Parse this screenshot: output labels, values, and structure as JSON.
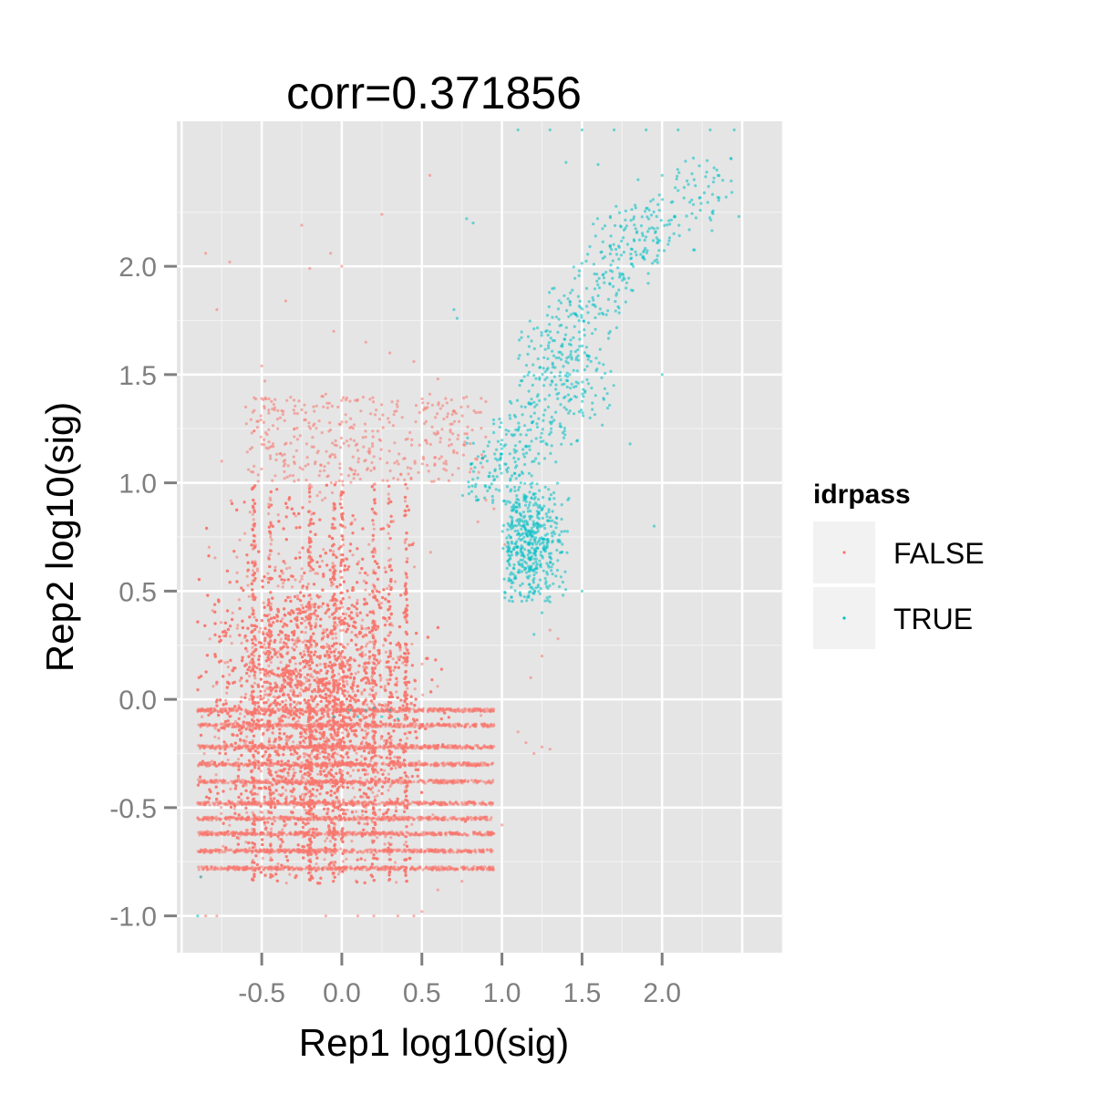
{
  "chart_data": {
    "type": "scatter",
    "title": "corr=0.371856",
    "xlabel": "Rep1 log10(sig)",
    "ylabel": "Rep2 log10(sig)",
    "xlim": [
      -1.03,
      2.75
    ],
    "ylim": [
      -1.17,
      2.67
    ],
    "x_ticks": [
      -0.5,
      0.0,
      0.5,
      1.0,
      1.5,
      2.0
    ],
    "x_tick_labels": [
      "-0.5",
      "0.0",
      "0.5",
      "1.0",
      "1.5",
      "2.0"
    ],
    "y_ticks": [
      -1.0,
      -0.5,
      0.0,
      0.5,
      1.0,
      1.5,
      2.0
    ],
    "y_tick_labels": [
      "-1.0",
      "-0.5",
      "0.0",
      "0.5",
      "1.0",
      "1.5",
      "2.0"
    ],
    "grid": true,
    "background_color": "#e5e5e5",
    "legend": {
      "title": "idrpass",
      "placement": "right",
      "entries": [
        {
          "label": "FALSE",
          "color": "#f8766d"
        },
        {
          "label": "TRUE",
          "color": "#00bfc4"
        }
      ]
    },
    "series": [
      {
        "name": "FALSE",
        "color": "#f8766d",
        "points": [
          [
            -0.85,
            2.06
          ],
          [
            -0.78,
            1.8
          ],
          [
            -0.7,
            2.02
          ],
          [
            -0.5,
            1.54
          ],
          [
            -0.48,
            1.47
          ],
          [
            -0.25,
            2.19
          ],
          [
            -0.35,
            1.84
          ],
          [
            -0.2,
            1.99
          ],
          [
            -0.07,
            2.06
          ],
          [
            0.0,
            2.0
          ],
          [
            0.25,
            2.24
          ],
          [
            0.55,
            2.42
          ],
          [
            -0.6,
            1.35
          ],
          [
            -0.4,
            1.25
          ],
          [
            -0.05,
            1.7
          ],
          [
            0.15,
            1.65
          ],
          [
            0.3,
            1.6
          ],
          [
            0.45,
            1.56
          ],
          [
            0.6,
            1.48
          ],
          [
            -0.1,
            1.41
          ],
          [
            0.55,
            1.41
          ],
          [
            -0.88,
            -0.82
          ],
          [
            -0.85,
            -1.0
          ],
          [
            -0.78,
            -1.0
          ],
          [
            -0.1,
            -1.0
          ],
          [
            0.1,
            -1.0
          ],
          [
            0.2,
            -1.0
          ],
          [
            0.35,
            -1.0
          ],
          [
            0.45,
            -1.0
          ],
          [
            0.5,
            -0.98
          ],
          [
            0.6,
            -0.88
          ],
          [
            0.75,
            -0.84
          ],
          [
            0.85,
            -0.62
          ],
          [
            0.95,
            -0.62
          ],
          [
            1.0,
            -0.58
          ],
          [
            1.1,
            -0.15
          ],
          [
            1.15,
            -0.2
          ],
          [
            1.2,
            -0.25
          ],
          [
            1.25,
            -0.22
          ],
          [
            1.3,
            -0.23
          ],
          [
            1.18,
            0.1
          ],
          [
            1.25,
            0.2
          ],
          [
            1.3,
            0.32
          ],
          [
            1.35,
            0.28
          ],
          [
            0.85,
            0.82
          ],
          [
            0.9,
            0.92
          ],
          [
            0.95,
            0.88
          ],
          [
            -0.75,
            1.1
          ],
          [
            -0.3,
            1.12
          ],
          [
            0.1,
            1.15
          ],
          [
            0.4,
            1.2
          ],
          [
            0.65,
            1.1
          ],
          [
            0.8,
            1.05
          ]
        ],
        "clusters": [
          {
            "x": [
              -0.9,
              1.0
            ],
            "y": [
              -0.85,
              1.0
            ],
            "approx_count": 9000
          },
          {
            "x": [
              -0.9,
              0.95
            ],
            "y": [
              -0.8,
              -0.05
            ],
            "approx_count": 4000,
            "note": "banded rows near y = -0.05, -0.2, -0.3, -0.4, -0.5, -0.6, -0.7"
          },
          {
            "x": [
              -0.6,
              0.9
            ],
            "y": [
              1.0,
              1.4
            ],
            "approx_count": 400
          }
        ]
      },
      {
        "name": "TRUE",
        "color": "#00bfc4",
        "points": [
          [
            -0.9,
            -1.0
          ],
          [
            -0.88,
            -0.82
          ],
          [
            -0.05,
            -0.08
          ],
          [
            0.05,
            -0.05
          ],
          [
            0.1,
            -0.08
          ],
          [
            0.15,
            -0.05
          ],
          [
            0.2,
            -0.04
          ],
          [
            0.25,
            -0.08
          ],
          [
            0.3,
            -0.05
          ],
          [
            0.35,
            -0.09
          ],
          [
            0.78,
            2.22
          ],
          [
            0.82,
            2.2
          ],
          [
            0.7,
            1.8
          ],
          [
            0.72,
            1.76
          ],
          [
            1.1,
            2.63
          ],
          [
            1.3,
            2.63
          ],
          [
            1.5,
            2.63
          ],
          [
            1.7,
            2.63
          ],
          [
            1.9,
            2.63
          ],
          [
            2.1,
            2.63
          ],
          [
            2.3,
            2.63
          ],
          [
            2.45,
            2.63
          ],
          [
            1.4,
            2.48
          ],
          [
            1.6,
            2.47
          ],
          [
            1.85,
            2.4
          ],
          [
            2.0,
            2.42
          ],
          [
            2.1,
            2.35
          ],
          [
            2.2,
            2.4
          ],
          [
            2.35,
            2.42
          ],
          [
            2.4,
            2.32
          ],
          [
            1.95,
            0.8
          ],
          [
            2.0,
            1.5
          ],
          [
            1.8,
            1.18
          ],
          [
            1.55,
            1.3
          ],
          [
            1.5,
            0.5
          ],
          [
            1.3,
            0.45
          ],
          [
            1.25,
            0.4
          ],
          [
            1.2,
            0.3
          ]
        ],
        "clusters": [
          {
            "x": [
              1.0,
              1.45
            ],
            "y": [
              0.45,
              1.0
            ],
            "approx_count": 500,
            "note": "dense core around (1.15, 0.75)"
          },
          {
            "x": [
              0.75,
              1.7
            ],
            "y": [
              0.9,
              1.6
            ],
            "approx_count": 300
          },
          {
            "x": [
              1.1,
              2.0
            ],
            "y": [
              1.4,
              2.3
            ],
            "approx_count": 300
          },
          {
            "x": [
              1.8,
              2.5
            ],
            "y": [
              2.0,
              2.5
            ],
            "approx_count": 100
          }
        ]
      }
    ]
  }
}
